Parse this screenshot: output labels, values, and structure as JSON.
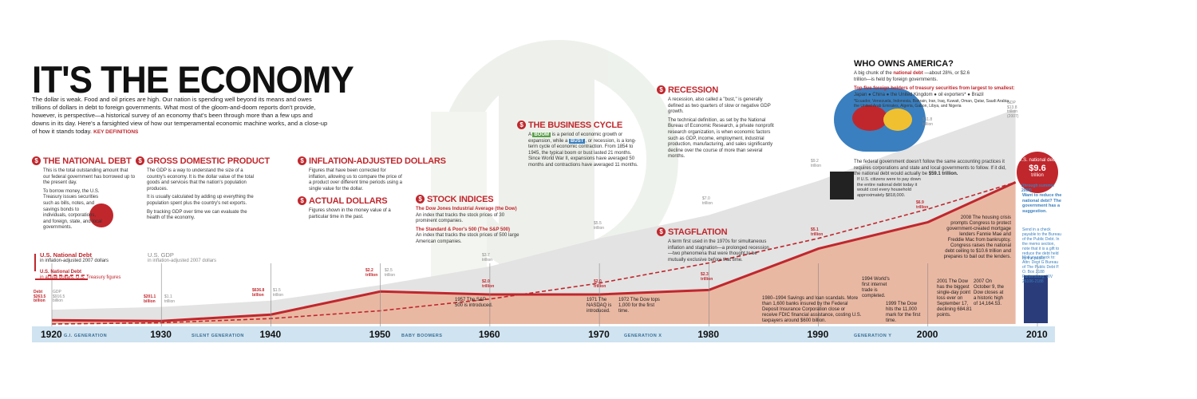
{
  "title": "IT'S THE ECONOMY",
  "intro": "The dollar is weak. Food and oil prices are high. Our nation is spending well beyond its means and owes trillions of dollars in debt to foreign governments. What most of the gloom-and-doom reports don't provide, however, is perspective—a historical survey of an economy that's been through more than a few ups and downs in its day. Here's a farsighted view of how our temperamental economic machine works, and a close-up of how it stands today.",
  "key_definitions": "KEY DEFINITIONS",
  "sections": {
    "national_debt": {
      "title": "THE NATIONAL DEBT",
      "p1": "This is the total outstanding amount that our federal government has borrowed up to the present day.",
      "p2": "To borrow money, the U.S. Treasury issues securities such as bills, notes, and savings bonds to individuals, corporations, and foreign, state, and local governments."
    },
    "gdp": {
      "title": "GROSS DOMESTIC PRODUCT",
      "p1": "The GDP is a way to understand the size of a country's economy. It is the dollar value of the total goods and services that the nation's population produces.",
      "p2": "It is usually calculated by adding up everything the population spent plus the country's net exports.",
      "p3": "By tracking GDP over time we can evaluate the health of the economy."
    },
    "inflation": {
      "title": "INFLATION-ADJUSTED DOLLARS",
      "p1": "Figures that have been corrected for inflation, allowing us to compare the price of a product over different time periods using a single value for the dollar."
    },
    "actual": {
      "title": "ACTUAL DOLLARS",
      "p1": "Figures shown in the money value of a particular time in the past."
    },
    "stock": {
      "title": "STOCK INDICES",
      "dow_h": "The Dow Jones Industrial Average (the Dow)",
      "dow": "An index that tracks the stock prices of 30 prominent companies.",
      "sp_h": "The Standard & Poor's 500 (The S&P 500)",
      "sp": "An index that tracks the stock prices of 500 large American companies."
    },
    "cycle": {
      "title": "THE BUSINESS CYCLE",
      "p1_a": "A",
      "boom": "BOOM",
      "p1_b": "is a period of economic growth or expansion, while a",
      "bust": "BUST",
      "p1_c": ", or recession, is a long-term cycle of economic contraction. From 1854 to 1945, the typical boom or bust lasted 21 months. Since World War II, expansions have averaged 50 months and contractions have averaged 11 months."
    },
    "recession": {
      "title": "RECESSION",
      "p1": "A recession, also called a \"bust,\" is generally defined as two quarters of slow or negative GDP growth.",
      "p2": "The technical definition, as set by the National Bureau of Economic Research, a private nonprofit research organization, is when economic factors such as GDP, income, employment, industrial production, manufacturing, and sales significantly decline over the course of more than several months."
    },
    "stagflation": {
      "title": "STAGFLATION",
      "p1": "A term first used in the 1970s for simultaneous inflation and stagnation—a prolonged recession—two phenomena that were thought to be mutually exclusive before that time."
    }
  },
  "legend": {
    "debt_adj": "U.S. National Debt",
    "debt_adj_sub": "in inflation-adjusted 2007 dollars",
    "debt_act": "U.S. National Debt",
    "debt_act_sub": "in actual dollars, U.S. Treasury figures",
    "gdp": "U.S. GDP",
    "gdp_sub": "in inflation-adjusted 2007 dollars"
  },
  "who": {
    "title": "WHO OWNS AMERICA?",
    "p1_a": "A big chunk of the",
    "p1_red": "national debt",
    "p1_b": "—about 28%, or $2.6 trillion—is held by foreign governments.",
    "holders_h": "Top five foreign holders of treasury securities from largest to smallest:",
    "holders": "Japan ● China ● the United Kingdom ● oil exporters* ● Brazil",
    "footnote": "*Ecuador, Venezuela, Indonesia, Bahrain, Iran, Iraq, Kuwait, Oman, Qatar, Saudi Arabia, the United Arab Emirates, Algeria, Gabon, Libya, and Nigeria",
    "accounting": "The federal government doesn't follow the same accounting practices it requires corporations and state and local governments to follow. If it did, the national debt would actually be",
    "accounting_val": "$59.1 trillion.",
    "citizens": "If U.S. citizens were to pay down the entire national debt today it would cost every household approximately $818,000."
  },
  "current_debt": {
    "label": "U.S. national debt",
    "value": "$9.6",
    "unit": "trillion",
    "note": "(through summer 2008)"
  },
  "reduce": {
    "h": "Want to reduce the national debt? The government has a suggestion.",
    "p": "Send in a check payable to the Bureau of the Public Debt. In the memo section, note that it is a gift to reduce the debt held by the public.",
    "mail": "Mail your check to: Attn: Dept G Bureau of The Public Debt P. O. Box 2188 Parkersburg, WV 26106-2188"
  },
  "labels": {
    "debt1920": "Debt $263.5 billion",
    "gdp1920": "GDP $916.5 billion",
    "d1930": "$201.1 billion",
    "g1930": "$1.1 trillion",
    "d1940": "$636.8 billion",
    "g1940": "$1.5 trillion",
    "d1950": "$2.2 trillion",
    "g1950": "$2.5 trillion",
    "d1960": "$2.0 trillion",
    "g1960": "$3.7 trillion",
    "d1970": "$2.0 trillion",
    "g1970": "$5.5 trillion",
    "d1980": "$2.3 trillion",
    "g1980": "$7.0 trillion",
    "d1990": "$5.1 trillion",
    "g1990": "$9.2 trillion",
    "d2000": "$6.9 trillion",
    "g2000": "$11.8 trillion",
    "g2010": "GDP $13.8 trillion (2007)"
  },
  "events": {
    "e1957": "1957 The S&P 500 is introduced.",
    "e1971": "1971 The NASDAQ is introduced.",
    "e1972": "1972 The Dow tops 1,000 for the first time.",
    "e1980": "1980–1994 Savings and loan scandals. More than 1,600 banks insured by the Federal Deposit Insurance Corporation close or receive FDIC financial assistance, costing U.S. taxpayers around $600 billion.",
    "e1994": "1994 World's first internet trade is completed.",
    "e1999": "1999 The Dow hits the 11,000 mark for the first time.",
    "e2001": "2001 The Dow has the biggest single-day point loss ever on September 17, declining 684.81 points.",
    "e2007": "2007 On October 9, the Dow closes at a historic high of 14,164.53.",
    "e2008": "2008 The housing crisis prompts Congress to protect government-created mortgage lenders Fannie Mae and Freddie Mac from bankruptcy. Congress raises the national debt ceiling to $10.6 trillion and prepares to bail out the lenders."
  },
  "timeline": {
    "years": [
      "1920",
      "1930",
      "1940",
      "1950",
      "1960",
      "1970",
      "1980",
      "1990",
      "2000",
      "2010"
    ],
    "generations": [
      "G.I. GENERATION",
      "SILENT GENERATION",
      "BABY BOOMERS",
      "GENERATION X",
      "GENERATION Y"
    ]
  },
  "colors": {
    "red": "#c0272d",
    "fill": "#e8b5a0",
    "gdp": "#dcdcdc",
    "timeline": "#cfe3f0"
  },
  "chart_data": {
    "type": "area",
    "x": [
      1920,
      1930,
      1940,
      1950,
      1960,
      1970,
      1980,
      1990,
      2000,
      2008
    ],
    "series": [
      {
        "name": "U.S. National Debt",
        "values": [
          0.26,
          0.2,
          0.64,
          2.2,
          2.0,
          2.0,
          2.3,
          5.1,
          6.9,
          9.6
        ]
      },
      {
        "name": "U.S. GDP",
        "values": [
          0.92,
          1.1,
          1.5,
          2.5,
          3.7,
          5.5,
          7.0,
          9.2,
          11.8,
          13.8
        ]
      }
    ],
    "ylabel": "",
    "xlabel": ""
  }
}
